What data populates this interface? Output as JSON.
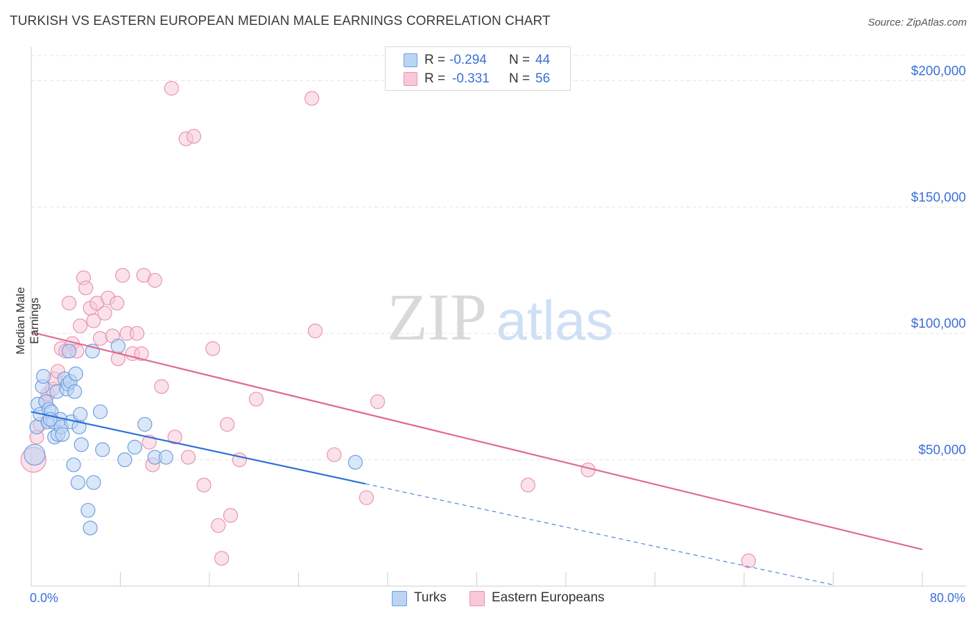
{
  "title": "TURKISH VS EASTERN EUROPEAN MEDIAN MALE EARNINGS CORRELATION CHART",
  "source": "Source: ZipAtlas.com",
  "watermark": {
    "zip": "ZIP",
    "atlas": "atlas"
  },
  "legend": {
    "r_label": "R =",
    "n_label": "N =",
    "rows": [
      {
        "r": "-0.294",
        "n": "44",
        "color": "#bcd4f2",
        "border": "#6d9ee0"
      },
      {
        "r": "-0.331",
        "n": "56",
        "color": "#f8c8d8",
        "border": "#e893b0"
      }
    ]
  },
  "bottom_legend": [
    {
      "label": "Turks",
      "color": "#bcd4f2",
      "border": "#6d9ee0"
    },
    {
      "label": "Eastern Europeans",
      "color": "#f8c8d8",
      "border": "#e893b0"
    }
  ],
  "x_axis": {
    "min_label": "0.0%",
    "max_label": "80.0%"
  },
  "chart_data": {
    "type": "scatter",
    "title": "TURKISH VS EASTERN EUROPEAN MEDIAN MALE EARNINGS CORRELATION CHART",
    "xlabel": "",
    "ylabel": "Median Male Earnings",
    "xlim": [
      0,
      80
    ],
    "ylim": [
      0,
      210000
    ],
    "yticks": [
      50000,
      100000,
      150000,
      200000
    ],
    "ytick_labels": [
      "$50,000",
      "$100,000",
      "$150,000",
      "$200,000"
    ],
    "grid": true,
    "series": [
      {
        "name": "Turks",
        "color": "#6d9ee0",
        "fill": "#bcd4f2",
        "trend": {
          "x0": 0,
          "y0": 69000,
          "x1": 30,
          "y1": 40500,
          "dashed_to_x": 72,
          "dashed_to_y": 500,
          "color": "#2e6fd6"
        },
        "points": [
          [
            0.3,
            52000,
            15
          ],
          [
            0.5,
            63000,
            10
          ],
          [
            0.6,
            72000,
            10
          ],
          [
            0.8,
            68000,
            10
          ],
          [
            1.0,
            79000,
            10
          ],
          [
            1.1,
            83000,
            10
          ],
          [
            1.3,
            73000,
            10
          ],
          [
            1.5,
            65000,
            10
          ],
          [
            1.6,
            70000,
            10
          ],
          [
            1.8,
            69000,
            10
          ],
          [
            2.0,
            65000,
            10
          ],
          [
            2.1,
            59000,
            10
          ],
          [
            2.3,
            77000,
            10
          ],
          [
            2.4,
            60000,
            10
          ],
          [
            2.6,
            66000,
            10
          ],
          [
            2.7,
            63000,
            10
          ],
          [
            2.8,
            60000,
            10
          ],
          [
            3.0,
            82000,
            10
          ],
          [
            3.2,
            78000,
            10
          ],
          [
            3.3,
            80000,
            10
          ],
          [
            3.4,
            93000,
            10
          ],
          [
            3.5,
            81000,
            10
          ],
          [
            3.6,
            65000,
            10
          ],
          [
            3.8,
            48000,
            10
          ],
          [
            3.9,
            77000,
            10
          ],
          [
            4.0,
            84000,
            10
          ],
          [
            4.2,
            41000,
            10
          ],
          [
            4.3,
            63000,
            10
          ],
          [
            4.4,
            68000,
            10
          ],
          [
            4.5,
            56000,
            10
          ],
          [
            5.1,
            30000,
            10
          ],
          [
            5.3,
            23000,
            10
          ],
          [
            5.5,
            93000,
            10
          ],
          [
            5.6,
            41000,
            10
          ],
          [
            6.2,
            69000,
            10
          ],
          [
            6.4,
            54000,
            10
          ],
          [
            7.8,
            95000,
            10
          ],
          [
            8.4,
            50000,
            10
          ],
          [
            9.3,
            55000,
            10
          ],
          [
            10.2,
            64000,
            10
          ],
          [
            11.1,
            51000,
            10
          ],
          [
            12.1,
            51000,
            10
          ],
          [
            29.1,
            49000,
            10
          ],
          [
            1.7,
            66000,
            10
          ]
        ]
      },
      {
        "name": "Eastern Europeans",
        "color": "#e893b0",
        "fill": "#f8c8d8",
        "trend": {
          "x0": 0,
          "y0": 100500,
          "x1": 80,
          "y1": 14500,
          "color": "#e06a95"
        },
        "points": [
          [
            0.2,
            50000,
            18
          ],
          [
            0.5,
            59000,
            10
          ],
          [
            0.8,
            64000,
            10
          ],
          [
            1.3,
            73000,
            10
          ],
          [
            1.5,
            76000,
            10
          ],
          [
            1.9,
            78000,
            10
          ],
          [
            2.1,
            82000,
            10
          ],
          [
            2.4,
            85000,
            10
          ],
          [
            2.7,
            94000,
            10
          ],
          [
            3.1,
            93000,
            10
          ],
          [
            3.4,
            112000,
            10
          ],
          [
            3.7,
            96000,
            10
          ],
          [
            4.1,
            93000,
            10
          ],
          [
            4.4,
            103000,
            10
          ],
          [
            4.7,
            122000,
            10
          ],
          [
            4.9,
            118000,
            10
          ],
          [
            5.3,
            110000,
            10
          ],
          [
            5.6,
            105000,
            10
          ],
          [
            5.9,
            112000,
            10
          ],
          [
            6.2,
            98000,
            10
          ],
          [
            6.6,
            108000,
            10
          ],
          [
            6.9,
            114000,
            10
          ],
          [
            7.3,
            99000,
            10
          ],
          [
            7.7,
            112000,
            10
          ],
          [
            7.8,
            90000,
            10
          ],
          [
            8.2,
            123000,
            10
          ],
          [
            8.6,
            100000,
            10
          ],
          [
            9.1,
            92000,
            10
          ],
          [
            9.5,
            100000,
            10
          ],
          [
            9.9,
            92000,
            10
          ],
          [
            10.1,
            123000,
            10
          ],
          [
            10.6,
            57000,
            10
          ],
          [
            10.9,
            48000,
            10
          ],
          [
            11.1,
            121000,
            10
          ],
          [
            11.7,
            79000,
            10
          ],
          [
            12.6,
            197000,
            10
          ],
          [
            12.9,
            59000,
            10
          ],
          [
            13.9,
            177000,
            10
          ],
          [
            14.6,
            178000,
            10
          ],
          [
            14.1,
            51000,
            10
          ],
          [
            15.5,
            40000,
            10
          ],
          [
            16.3,
            94000,
            10
          ],
          [
            16.8,
            24000,
            10
          ],
          [
            17.1,
            11000,
            10
          ],
          [
            17.6,
            64000,
            10
          ],
          [
            17.9,
            28000,
            10
          ],
          [
            18.7,
            50000,
            10
          ],
          [
            20.2,
            74000,
            10
          ],
          [
            25.2,
            193000,
            10
          ],
          [
            25.5,
            101000,
            10
          ],
          [
            27.2,
            52000,
            10
          ],
          [
            30.1,
            35000,
            10
          ],
          [
            31.1,
            73000,
            10
          ],
          [
            44.6,
            40000,
            10
          ],
          [
            50.0,
            46000,
            10
          ],
          [
            64.4,
            10000,
            10
          ]
        ]
      }
    ]
  }
}
